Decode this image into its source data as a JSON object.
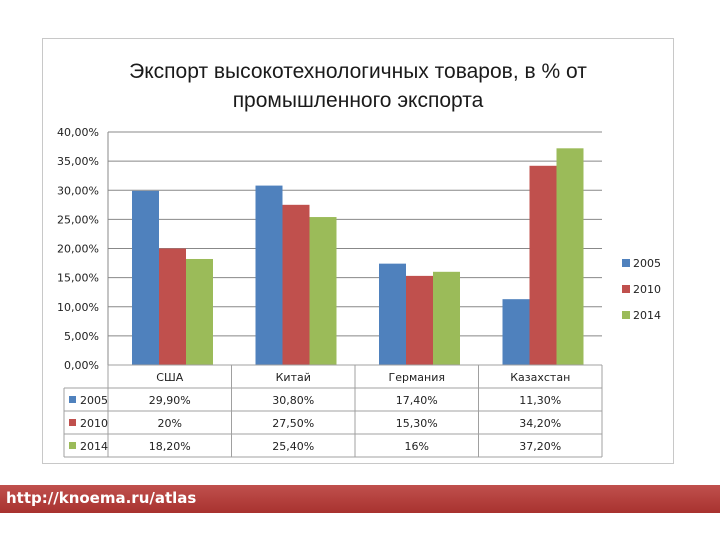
{
  "chart_data": {
    "type": "bar",
    "title_lines": [
      "Экспорт высокотехнологичных товаров, в % от",
      "промышленного экспорта"
    ],
    "categories": [
      "США",
      "Китай",
      "Германия",
      "Казахстан"
    ],
    "series": [
      {
        "name": "2005",
        "color": "#4f81bd",
        "values": [
          29.9,
          30.8,
          17.4,
          11.3
        ],
        "labels": [
          "29,90%",
          "30,80%",
          "17,40%",
          "11,30%"
        ]
      },
      {
        "name": "2010",
        "color": "#c0504d",
        "values": [
          20.0,
          27.5,
          15.3,
          34.2
        ],
        "labels": [
          "20%",
          "27,50%",
          "15,30%",
          "34,20%"
        ]
      },
      {
        "name": "2014",
        "color": "#9bbb59",
        "values": [
          18.2,
          25.4,
          16.0,
          37.2
        ],
        "labels": [
          "18,20%",
          "25,40%",
          "16%",
          "37,20%"
        ]
      }
    ],
    "y_ticks": [
      "0,00%",
      "5,00%",
      "10,00%",
      "15,00%",
      "20,00%",
      "25,00%",
      "30,00%",
      "35,00%",
      "40,00%"
    ],
    "ylim": [
      0,
      40
    ],
    "y_step": 5,
    "grid": true,
    "legend": "right",
    "data_table": true
  },
  "footer": {
    "url": "http://knoema.ru/atlas"
  }
}
